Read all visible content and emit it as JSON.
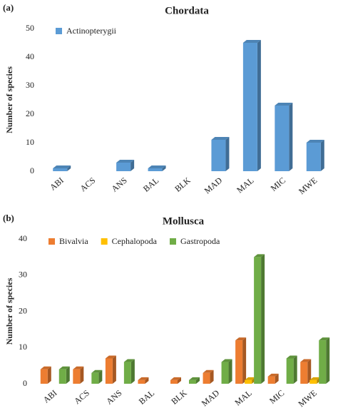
{
  "chart_data": [
    {
      "type": "bar",
      "panel_label": "(a)",
      "title": "Chordata",
      "y_label": "Number of species",
      "categories": [
        "ABI",
        "ACS",
        "ANS",
        "BAL",
        "BLK",
        "MAD",
        "MAL",
        "MIC",
        "MWE"
      ],
      "series": [
        {
          "name": "Actinopterygii",
          "color": "#5b9bd5",
          "values": [
            1,
            0,
            3,
            1,
            0,
            11,
            45,
            23,
            10
          ]
        }
      ],
      "ylim": [
        0,
        50
      ],
      "yticks": [
        0,
        10,
        20,
        30,
        40,
        50
      ],
      "legend": "upper-left"
    },
    {
      "type": "bar",
      "panel_label": "(b)",
      "title": "Mollusca",
      "y_label": "Number of species",
      "categories": [
        "ABI",
        "ACS",
        "ANS",
        "BAL",
        "BLK",
        "MAD",
        "MAL",
        "MIC",
        "MWE"
      ],
      "series": [
        {
          "name": "Bivalvia",
          "color": "#ed7d31",
          "values": [
            4,
            4,
            7,
            1,
            1,
            3,
            12,
            2,
            6
          ]
        },
        {
          "name": "Cephalopoda",
          "color": "#ffc000",
          "values": [
            0,
            0,
            0,
            0,
            0,
            0,
            1,
            0,
            1
          ]
        },
        {
          "name": "Gastropoda",
          "color": "#70ad47",
          "values": [
            4,
            3,
            6,
            0,
            1,
            6,
            35,
            7,
            12
          ]
        }
      ],
      "ylim": [
        0,
        40
      ],
      "yticks": [
        0,
        10,
        20,
        30,
        40
      ],
      "legend": "upper-left"
    }
  ]
}
